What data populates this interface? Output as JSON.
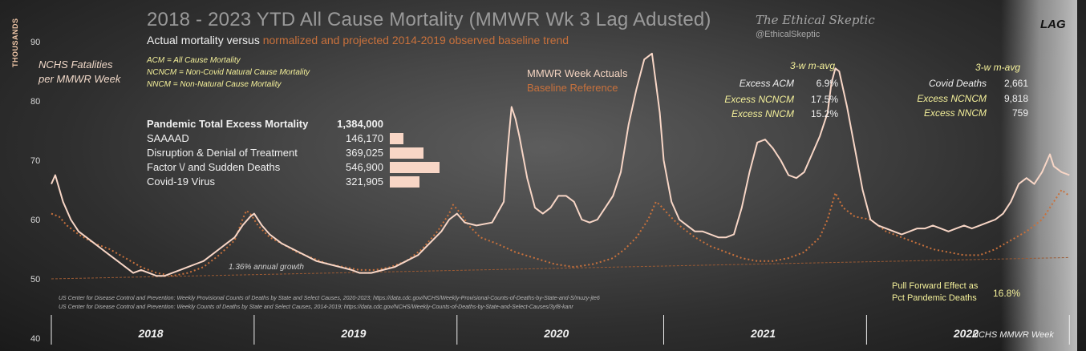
{
  "header": {
    "title": "2018 - 2023 YTD All Cause Mortality (MMWR Wk 3 Lag Adusted)",
    "subtitle_prefix": "Actual mortality versus",
    "subtitle_highlight": "normalized and projected 2014-2019 observed baseline trend",
    "brand": "The Ethical Skeptic",
    "handle": "@EthicalSkeptic",
    "lag_label": "LAG"
  },
  "axis": {
    "y_title": "THOUSANDS",
    "y_series_note_line1": "NCHS Fatalities",
    "y_series_note_line2": "per MMWR Week",
    "x_note": "NCHS MMWR Week"
  },
  "definitions": [
    "ACM = All Cause Mortality",
    "NCNCM = Non-Covid Natural Cause Mortality",
    "NNCM = Non-Natural Cause Mortality"
  ],
  "legend": {
    "actual": "MMWR Week Actuals",
    "baseline": "Baseline Reference"
  },
  "pandemic": {
    "header_label": "Pandemic Total Excess Mortality",
    "header_value": "1,384,000",
    "rows": [
      {
        "label": "SAAAAD",
        "value": "146,170",
        "n": 146170
      },
      {
        "label": "Disruption & Denial of Treatment",
        "value": "369,025",
        "n": 369025
      },
      {
        "label": "Factor \\/ and Sudden Deaths",
        "value": "546,900",
        "n": 546900
      },
      {
        "label": "Covid-19 Virus",
        "value": "321,905",
        "n": 321905
      }
    ]
  },
  "stats_left": {
    "header": "3-w m-avg",
    "rows": [
      {
        "label": "Excess ACM",
        "value": "6.9%"
      },
      {
        "label": "Excess NCNCM",
        "value": "17.5%"
      },
      {
        "label": "Excess NNCM",
        "value": "15.2%"
      }
    ]
  },
  "stats_right": {
    "header": "3-w m-avg",
    "rows": [
      {
        "label": "Covid Deaths",
        "value": "2,661"
      },
      {
        "label": "Excess NCNCM",
        "value": "9,818"
      },
      {
        "label": "Excess NNCM",
        "value": "759"
      }
    ]
  },
  "growth_label": "1.36% annual growth",
  "sources": [
    "US Center for Disease Control and Prevention: Weekly Provisional Counts of Deaths by State and Select Causes, 2020-2023; https://data.cdc.gov/NCHS/Weekly-Provisional-Counts-of-Deaths-by-State-and-S/muzy-jte6",
    "US Center for Disease Control and Prevention: Weekly Counts of Deaths by State and Select Causes, 2014-2019; https://data.cdc.gov/NCHS/Weekly-Counts-of-Deaths-by-State-and-Select-Causes/3yf8-kanr"
  ],
  "pull_forward": {
    "line1": "Pull Forward Effect as",
    "line2": "Pct Pandemic Deaths",
    "value": "16.8%"
  },
  "colors": {
    "actual": "#f8d6c6",
    "baseline": "#c8713c",
    "trend": "#9a5a34",
    "bar": "#f8d6c6",
    "highlight": "#f4f09a"
  },
  "chart_data": {
    "type": "line",
    "title": "2018 - 2023 YTD All Cause Mortality (MMWR Wk 3 Lag Adusted)",
    "xlabel": "NCHS MMWR Week",
    "ylabel": "THOUSANDS",
    "ylim": [
      40,
      95
    ],
    "yticks": [
      40,
      50,
      60,
      70,
      80,
      90
    ],
    "xlim": [
      1,
      264
    ],
    "years": [
      {
        "label": "2018",
        "mid": 27
      },
      {
        "label": "2019",
        "mid": 79
      },
      {
        "label": "2020",
        "mid": 131
      },
      {
        "label": "2021",
        "mid": 184
      },
      {
        "label": "2022",
        "mid": 236
      }
    ],
    "year_bounds": [
      1,
      53,
      105,
      158,
      210,
      262
    ],
    "series": [
      {
        "name": "MMWR Week Actuals",
        "points": [
          [
            1,
            66
          ],
          [
            2,
            67.5
          ],
          [
            4,
            63
          ],
          [
            6,
            60
          ],
          [
            8,
            58
          ],
          [
            10,
            57
          ],
          [
            12,
            56
          ],
          [
            14,
            55
          ],
          [
            16,
            54
          ],
          [
            18,
            53
          ],
          [
            20,
            52
          ],
          [
            22,
            51
          ],
          [
            24,
            51.5
          ],
          [
            26,
            51
          ],
          [
            28,
            50.5
          ],
          [
            30,
            50.5
          ],
          [
            32,
            51
          ],
          [
            34,
            51.5
          ],
          [
            36,
            52
          ],
          [
            38,
            52.5
          ],
          [
            40,
            53
          ],
          [
            42,
            54
          ],
          [
            44,
            55
          ],
          [
            46,
            56
          ],
          [
            48,
            57
          ],
          [
            50,
            59
          ],
          [
            52,
            60.5
          ],
          [
            53,
            61
          ],
          [
            55,
            59
          ],
          [
            57,
            57.5
          ],
          [
            60,
            56
          ],
          [
            63,
            55
          ],
          [
            66,
            54
          ],
          [
            69,
            53
          ],
          [
            72,
            52.5
          ],
          [
            75,
            52
          ],
          [
            78,
            51.5
          ],
          [
            80,
            51
          ],
          [
            83,
            51
          ],
          [
            86,
            51.5
          ],
          [
            89,
            52
          ],
          [
            92,
            53
          ],
          [
            95,
            54
          ],
          [
            98,
            56
          ],
          [
            101,
            58
          ],
          [
            103,
            60
          ],
          [
            105,
            61
          ],
          [
            107,
            59.5
          ],
          [
            110,
            59
          ],
          [
            114,
            59.5
          ],
          [
            117,
            63
          ],
          [
            118,
            72
          ],
          [
            119,
            79
          ],
          [
            120,
            77
          ],
          [
            121,
            74
          ],
          [
            123,
            67
          ],
          [
            125,
            62
          ],
          [
            127,
            61
          ],
          [
            129,
            62
          ],
          [
            131,
            64
          ],
          [
            133,
            64
          ],
          [
            135,
            63
          ],
          [
            137,
            60
          ],
          [
            139,
            59.5
          ],
          [
            141,
            60
          ],
          [
            143,
            62
          ],
          [
            145,
            64
          ],
          [
            147,
            68
          ],
          [
            149,
            76
          ],
          [
            151,
            82
          ],
          [
            153,
            87
          ],
          [
            155,
            88
          ],
          [
            156,
            83
          ],
          [
            157,
            78
          ],
          [
            158,
            70
          ],
          [
            160,
            63
          ],
          [
            162,
            60
          ],
          [
            164,
            59
          ],
          [
            166,
            58
          ],
          [
            168,
            58
          ],
          [
            170,
            57.5
          ],
          [
            172,
            57
          ],
          [
            174,
            57
          ],
          [
            176,
            57.5
          ],
          [
            178,
            62
          ],
          [
            180,
            68
          ],
          [
            182,
            73
          ],
          [
            184,
            73.5
          ],
          [
            186,
            72
          ],
          [
            188,
            70
          ],
          [
            190,
            67.5
          ],
          [
            192,
            67
          ],
          [
            194,
            68
          ],
          [
            196,
            71
          ],
          [
            198,
            74
          ],
          [
            200,
            78
          ],
          [
            201,
            83
          ],
          [
            202,
            85.5
          ],
          [
            203,
            85
          ],
          [
            205,
            79
          ],
          [
            207,
            72
          ],
          [
            209,
            65
          ],
          [
            211,
            60
          ],
          [
            213,
            59
          ],
          [
            215,
            58.5
          ],
          [
            217,
            58
          ],
          [
            219,
            57.5
          ],
          [
            221,
            58
          ],
          [
            223,
            58.5
          ],
          [
            225,
            58.5
          ],
          [
            227,
            59
          ],
          [
            229,
            58.5
          ],
          [
            231,
            58
          ],
          [
            233,
            58.5
          ],
          [
            235,
            59
          ],
          [
            237,
            58.5
          ],
          [
            239,
            59
          ],
          [
            241,
            59.5
          ],
          [
            243,
            60
          ],
          [
            245,
            61
          ],
          [
            247,
            63
          ],
          [
            249,
            66
          ],
          [
            251,
            67
          ],
          [
            253,
            66
          ],
          [
            255,
            68
          ],
          [
            257,
            71
          ],
          [
            258,
            69
          ],
          [
            260,
            68
          ],
          [
            262,
            67.5
          ]
        ]
      },
      {
        "name": "Baseline Reference",
        "points": [
          [
            1,
            61
          ],
          [
            3,
            60.5
          ],
          [
            5,
            59
          ],
          [
            8,
            57.5
          ],
          [
            12,
            56
          ],
          [
            16,
            55
          ],
          [
            20,
            53.5
          ],
          [
            24,
            52
          ],
          [
            28,
            51
          ],
          [
            32,
            50.5
          ],
          [
            36,
            51
          ],
          [
            40,
            52
          ],
          [
            44,
            54
          ],
          [
            48,
            56.5
          ],
          [
            50,
            60
          ],
          [
            51,
            61.5
          ],
          [
            52,
            61
          ],
          [
            54,
            59
          ],
          [
            57,
            57
          ],
          [
            60,
            56
          ],
          [
            64,
            54.5
          ],
          [
            68,
            53.5
          ],
          [
            72,
            52.5
          ],
          [
            76,
            52
          ],
          [
            80,
            51.5
          ],
          [
            84,
            51.5
          ],
          [
            88,
            52
          ],
          [
            92,
            53
          ],
          [
            96,
            55
          ],
          [
            100,
            58
          ],
          [
            103,
            61
          ],
          [
            104,
            62.5
          ],
          [
            106,
            61
          ],
          [
            108,
            59
          ],
          [
            111,
            57
          ],
          [
            115,
            56
          ],
          [
            120,
            54.5
          ],
          [
            125,
            53.5
          ],
          [
            130,
            52.5
          ],
          [
            135,
            52
          ],
          [
            140,
            52.5
          ],
          [
            145,
            53.5
          ],
          [
            148,
            55
          ],
          [
            151,
            57
          ],
          [
            154,
            60
          ],
          [
            156,
            63
          ],
          [
            157,
            62.5
          ],
          [
            159,
            61
          ],
          [
            162,
            59
          ],
          [
            166,
            57
          ],
          [
            170,
            55.5
          ],
          [
            174,
            54.5
          ],
          [
            178,
            53.5
          ],
          [
            182,
            53
          ],
          [
            186,
            53
          ],
          [
            190,
            53.5
          ],
          [
            194,
            54.5
          ],
          [
            198,
            57
          ],
          [
            200,
            60
          ],
          [
            202,
            64.5
          ],
          [
            204,
            62
          ],
          [
            207,
            60.5
          ],
          [
            211,
            60
          ],
          [
            215,
            58
          ],
          [
            219,
            57
          ],
          [
            223,
            56
          ],
          [
            227,
            55
          ],
          [
            231,
            54.5
          ],
          [
            235,
            54
          ],
          [
            239,
            54
          ],
          [
            243,
            55
          ],
          [
            247,
            56.5
          ],
          [
            251,
            58
          ],
          [
            255,
            60
          ],
          [
            258,
            63
          ],
          [
            260,
            65
          ],
          [
            262,
            64
          ]
        ]
      },
      {
        "name": "Trend 1.36% annual growth",
        "points": [
          [
            1,
            50
          ],
          [
            262,
            53.6
          ]
        ]
      }
    ]
  }
}
